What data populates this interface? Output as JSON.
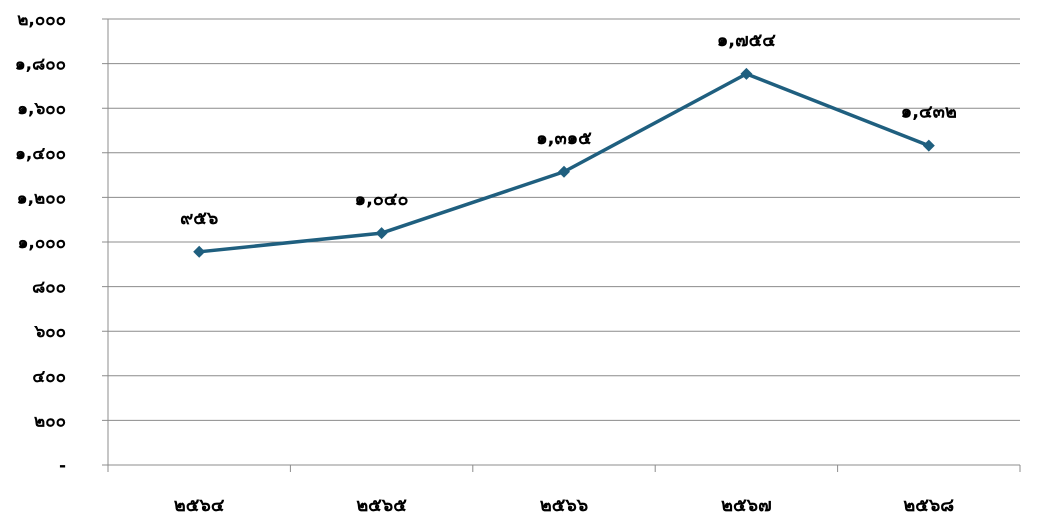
{
  "chart_data": {
    "type": "line",
    "title": "",
    "xlabel": "",
    "ylabel": "",
    "categories": [
      "๒๕๖๔",
      "๒๕๖๕",
      "๒๕๖๖",
      "๒๕๖๗",
      "๒๕๖๘"
    ],
    "series": [
      {
        "values": [
          956,
          1040,
          1315,
          1754,
          1432
        ],
        "labels": [
          "๙๕๖",
          "๑,๐๔๐",
          "๑,๓๑๕",
          "๑,๗๕๔",
          "๑,๔๓๒"
        ],
        "color": "#1f5f7f",
        "marker": "diamond"
      }
    ],
    "ylim": [
      0,
      2000
    ],
    "yticks": [
      0,
      200,
      400,
      600,
      800,
      1000,
      1200,
      1400,
      1600,
      1800,
      2000
    ],
    "ytick_labels": [
      "-",
      "๒๐๐",
      "๔๐๐",
      "๖๐๐",
      "๘๐๐",
      "๑,๐๐๐",
      "๑,๒๐๐",
      "๑,๔๐๐",
      "๑,๖๐๐",
      "๑,๘๐๐",
      "๒,๐๐๐"
    ],
    "grid": true,
    "legend": "none",
    "gridline_color": "#8c8c8c",
    "line_color": "#1f5f7f"
  }
}
